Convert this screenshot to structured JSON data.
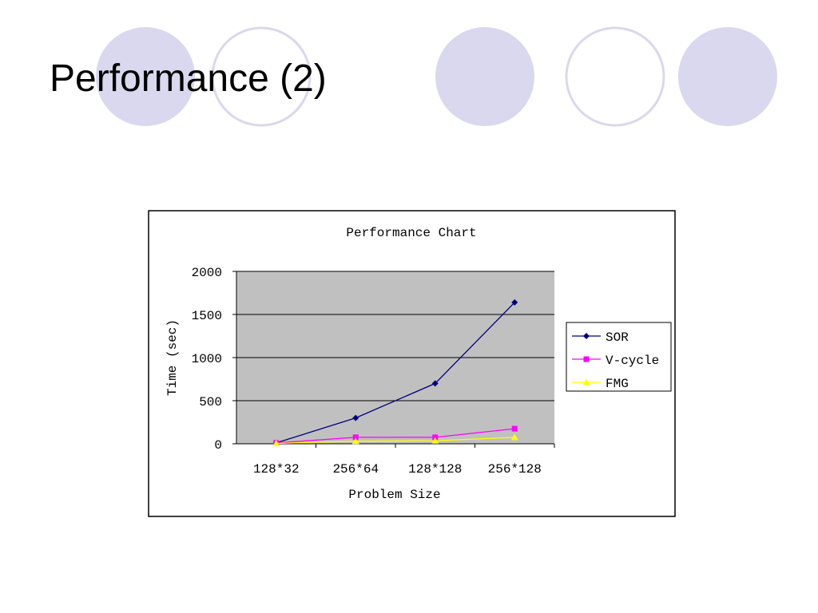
{
  "slide_title": "Performance (2)",
  "chart_data": {
    "type": "line",
    "title": "Performance Chart",
    "x_label": "Problem Size",
    "y_label": "Time (sec)",
    "categories": [
      "128*32",
      "256*64",
      "128*128",
      "256*128"
    ],
    "series": [
      {
        "name": "SOR",
        "color": "#000080",
        "marker": "diamond",
        "values": [
          10,
          300,
          700,
          1640
        ]
      },
      {
        "name": "V-cycle",
        "color": "#ff00ff",
        "marker": "square",
        "values": [
          10,
          75,
          75,
          175
        ]
      },
      {
        "name": "FMG",
        "color": "#ffff00",
        "marker": "triangle",
        "values": [
          5,
          30,
          35,
          75
        ]
      }
    ],
    "ylim": [
      0,
      2000
    ],
    "yticks": [
      0,
      500,
      1000,
      1500,
      2000
    ],
    "grid": true,
    "legend": "right"
  }
}
